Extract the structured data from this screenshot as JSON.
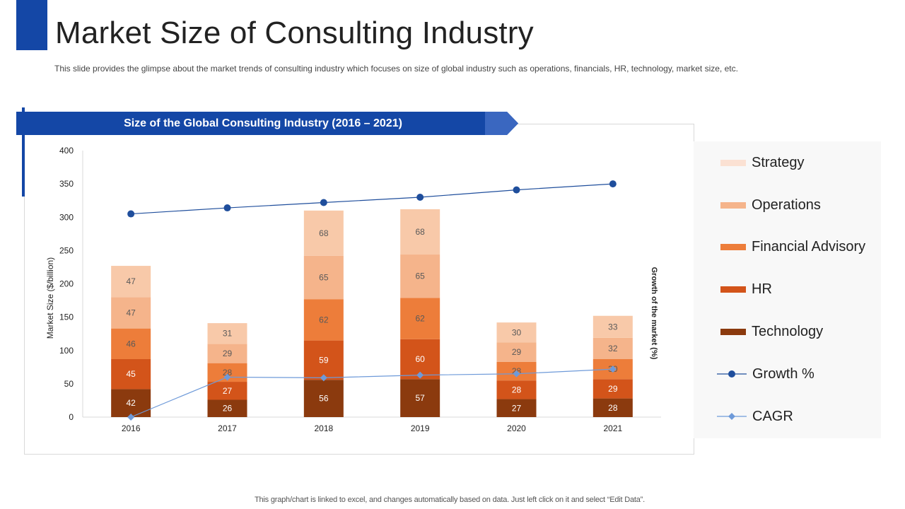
{
  "page": {
    "title": "Market Size of Consulting Industry",
    "subtitle": "This slide provides  the glimpse about the market trends of consulting industry which focuses on size of global industry such as operations, financials, HR, technology, market size, etc.",
    "banner": "Size of the Global Consulting Industry (2016 – 2021)",
    "footer": "This graph/chart is linked to excel,  and changes automatically based on data. Just left click on it and select “Edit Data”."
  },
  "colors": {
    "accent": "#1447a6",
    "technology": "#8b3a0e",
    "hr": "#d3541a",
    "financial_advisory": "#ed7d3a",
    "operations": "#f5b48b",
    "strategy": "#f8c9a9",
    "strategy_legend": "#fbe1d3",
    "growth": "#1f4e9c",
    "cagr": "#6e9ad9"
  },
  "chart_data": {
    "type": "bar",
    "stacked": true,
    "title": "Size of the Global Consulting Industry (2016 – 2021)",
    "categories": [
      "2016",
      "2017",
      "2018",
      "2019",
      "2020",
      "2021"
    ],
    "ylabel": "Market Size ($/billion)",
    "y2label": "Growth of the market (%)",
    "ylim": [
      0,
      400
    ],
    "yticks": [
      0,
      50,
      100,
      150,
      200,
      250,
      300,
      350,
      400
    ],
    "series": [
      {
        "name": "Technology",
        "key": "technology",
        "label_color": "#ffffff",
        "values": [
          42,
          26,
          56,
          57,
          27,
          28
        ]
      },
      {
        "name": "HR",
        "key": "hr",
        "label_color": "#ffffff",
        "values": [
          45,
          27,
          59,
          60,
          28,
          29
        ]
      },
      {
        "name": "Financial Advisory",
        "key": "financial_advisory",
        "label_color": "#595959",
        "values": [
          46,
          28,
          62,
          62,
          28,
          30
        ]
      },
      {
        "name": "Operations",
        "key": "operations",
        "label_color": "#595959",
        "values": [
          47,
          29,
          65,
          65,
          29,
          32
        ]
      },
      {
        "name": "Strategy",
        "key": "strategy",
        "label_color": "#595959",
        "values": [
          47,
          31,
          68,
          68,
          30,
          33
        ]
      }
    ],
    "lines": [
      {
        "name": "Growth %",
        "key": "growth",
        "marker": "circle",
        "values": [
          305,
          314,
          322,
          330,
          341,
          350
        ]
      },
      {
        "name": "CAGR",
        "key": "cagr",
        "marker": "diamond",
        "values": [
          0,
          60,
          59,
          63,
          65,
          72
        ]
      }
    ],
    "legend": [
      {
        "label": "Strategy",
        "kind": "box",
        "key": "strategy_legend"
      },
      {
        "label": "Operations",
        "kind": "box",
        "key": "operations"
      },
      {
        "label": "Financial Advisory",
        "kind": "box",
        "key": "financial_advisory"
      },
      {
        "label": "HR",
        "kind": "box",
        "key": "hr"
      },
      {
        "label": "Technology",
        "kind": "box",
        "key": "technology"
      },
      {
        "label": "Growth %",
        "kind": "line-circle",
        "key": "growth"
      },
      {
        "label": "CAGR",
        "kind": "line-diamond",
        "key": "cagr"
      }
    ],
    "legend_position": "right"
  }
}
